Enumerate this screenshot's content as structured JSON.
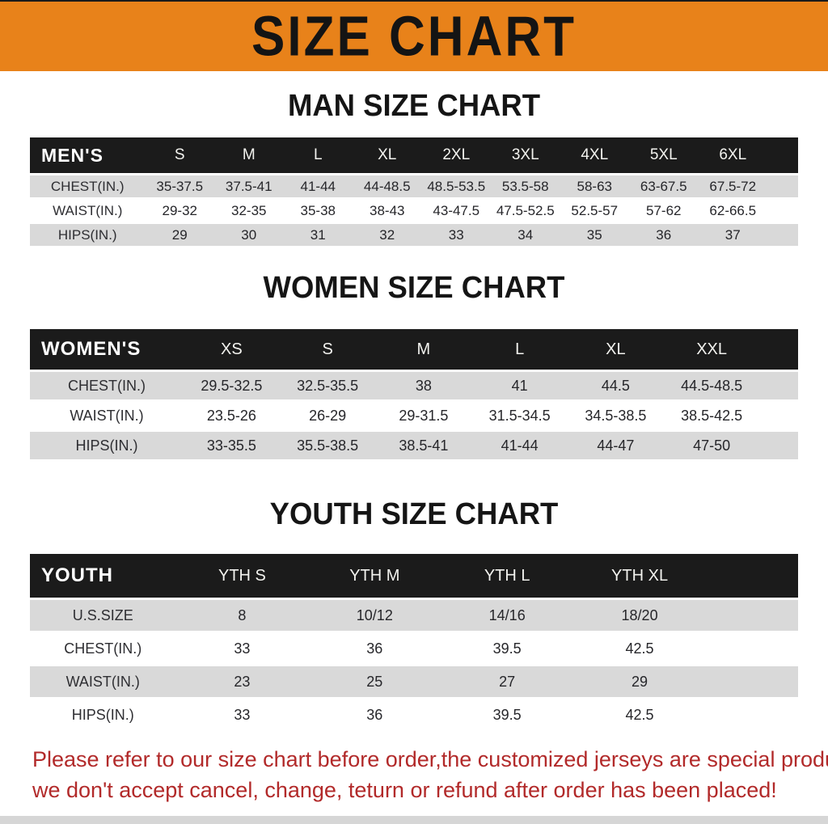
{
  "banner": {
    "title": "SIZE CHART"
  },
  "sections": [
    {
      "heading": "MAN SIZE CHART",
      "header_label": "MEN'S",
      "sizes": [
        "S",
        "M",
        "L",
        "XL",
        "2XL",
        "3XL",
        "4XL",
        "5XL",
        "6XL"
      ],
      "rows": [
        {
          "label": "CHEST(IN.)",
          "values": [
            "35-37.5",
            "37.5-41",
            "41-44",
            "44-48.5",
            "48.5-53.5",
            "53.5-58",
            "58-63",
            "63-67.5",
            "67.5-72"
          ]
        },
        {
          "label": "WAIST(IN.)",
          "values": [
            "29-32",
            "32-35",
            "35-38",
            "38-43",
            "43-47.5",
            "47.5-52.5",
            "52.5-57",
            "57-62",
            "62-66.5"
          ]
        },
        {
          "label": "HIPS(IN.)",
          "values": [
            "29",
            "30",
            "31",
            "32",
            "33",
            "34",
            "35",
            "36",
            "37"
          ]
        }
      ]
    },
    {
      "heading": "WOMEN SIZE CHART",
      "header_label": "WOMEN'S",
      "sizes": [
        "XS",
        "S",
        "M",
        "L",
        "XL",
        "XXL"
      ],
      "rows": [
        {
          "label": "CHEST(IN.)",
          "values": [
            "29.5-32.5",
            "32.5-35.5",
            "38",
            "41",
            "44.5",
            "44.5-48.5"
          ]
        },
        {
          "label": "WAIST(IN.)",
          "values": [
            "23.5-26",
            "26-29",
            "29-31.5",
            "31.5-34.5",
            "34.5-38.5",
            "38.5-42.5"
          ]
        },
        {
          "label": "HIPS(IN.)",
          "values": [
            "33-35.5",
            "35.5-38.5",
            "38.5-41",
            "41-44",
            "44-47",
            "47-50"
          ]
        }
      ]
    },
    {
      "heading": "YOUTH SIZE CHART",
      "header_label": "YOUTH",
      "sizes": [
        "YTH S",
        "YTH M",
        "YTH L",
        "YTH XL"
      ],
      "rows": [
        {
          "label": "U.S.SIZE",
          "values": [
            "8",
            "10/12",
            "14/16",
            "18/20"
          ]
        },
        {
          "label": "CHEST(IN.)",
          "values": [
            "33",
            "36",
            "39.5",
            "42.5"
          ]
        },
        {
          "label": "WAIST(IN.)",
          "values": [
            "23",
            "25",
            "27",
            "29"
          ]
        },
        {
          "label": "HIPS(IN.)",
          "values": [
            "33",
            "36",
            "39.5",
            "42.5"
          ]
        }
      ]
    }
  ],
  "disclaimer": {
    "line1": "Please refer to our size chart before order,the customized jerseys are special products,",
    "line2": "we don't accept cancel, change, teturn or refund after order has been placed!"
  },
  "colors": {
    "banner_bg": "#E8821A",
    "table_header_bg": "#1B1B1B",
    "row_stripe_gray": "#D9D9D9",
    "disclaimer_red": "#B22A2A"
  }
}
